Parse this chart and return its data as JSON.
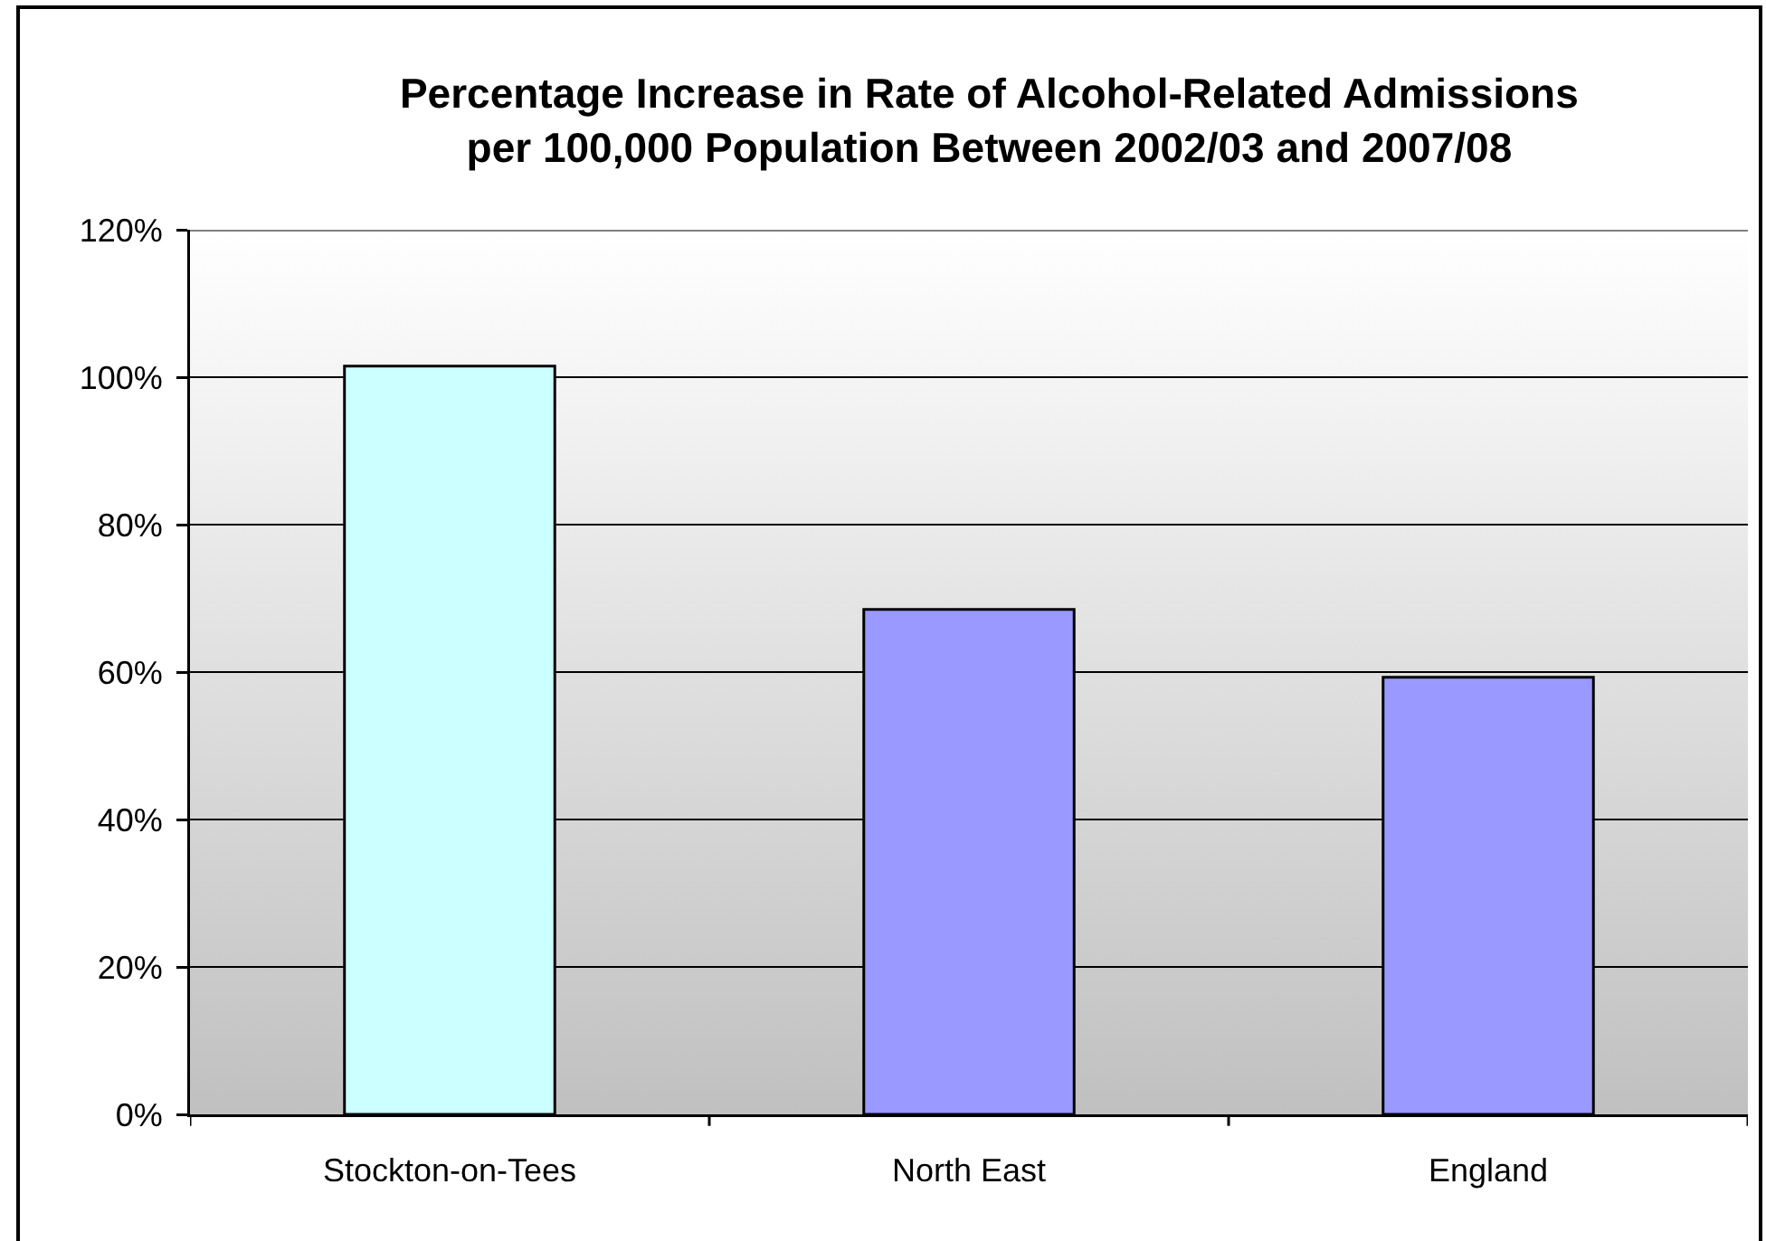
{
  "chart_data": {
    "type": "bar",
    "title": "Percentage Increase in Rate of Alcohol-Related Admissions per 100,000 Population Between 2002/03 and 2007/08",
    "categories": [
      "Stockton-on-Tees",
      "North East",
      "England"
    ],
    "values": [
      101.5,
      68.5,
      59.3
    ],
    "colors": [
      "#ccffff",
      "#9999ff",
      "#9999ff"
    ],
    "ylim": [
      0,
      120
    ],
    "yticks": [
      {
        "value": 0,
        "label": "0%"
      },
      {
        "value": 20,
        "label": "20%"
      },
      {
        "value": 40,
        "label": "40%"
      },
      {
        "value": 60,
        "label": "60%"
      },
      {
        "value": 80,
        "label": "80%"
      },
      {
        "value": 100,
        "label": "100%"
      },
      {
        "value": 120,
        "label": "120%"
      }
    ],
    "grid": "y"
  }
}
